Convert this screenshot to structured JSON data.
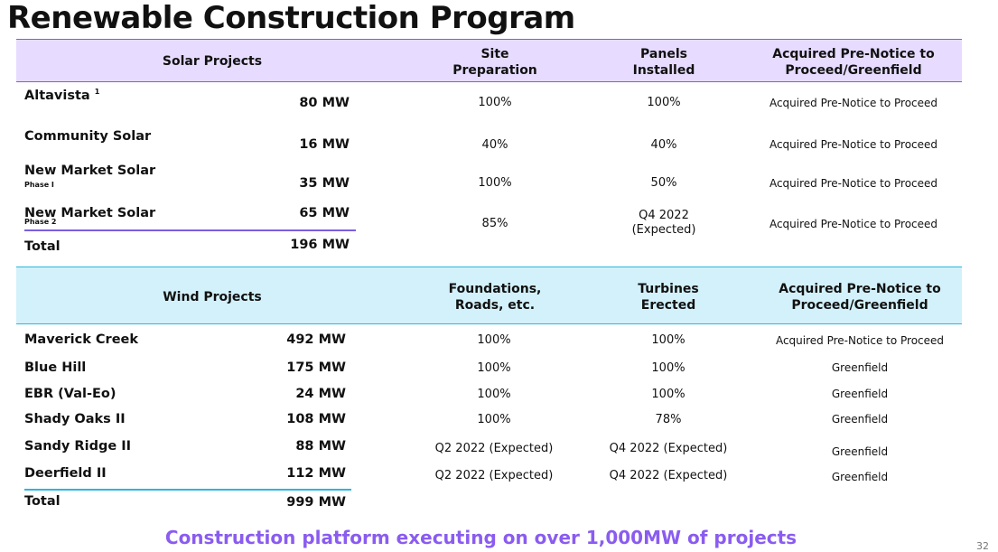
{
  "title": "Renewable Construction Program",
  "colors": {
    "solar_header_bg": "#e7dcff",
    "solar_accent": "#7b5fe0",
    "wind_header_bg": "#d3f1fb",
    "wind_accent": "#29b6e0",
    "footer_text": "#8a5cf0"
  },
  "solar": {
    "headers": {
      "projects": "Solar Projects",
      "col1": [
        "Site",
        "Preparation"
      ],
      "col2": [
        "Panels",
        "Installed"
      ],
      "col3": [
        "Acquired Pre-Notice to",
        "Proceed/Greenfield"
      ]
    },
    "rows": [
      {
        "name": "Altavista",
        "footnote": "1",
        "subtitle": "",
        "capacity": "80 MW",
        "col1": "100%",
        "col2": [
          "100%"
        ],
        "col3": "Acquired Pre-Notice to Proceed"
      },
      {
        "name": "Community Solar",
        "footnote": "",
        "subtitle": "",
        "capacity": "16 MW",
        "col1": "40%",
        "col2": [
          "40%"
        ],
        "col3": "Acquired Pre-Notice to Proceed"
      },
      {
        "name": "New Market Solar",
        "footnote": "",
        "subtitle": "Phase I",
        "capacity": "35 MW",
        "col1": "100%",
        "col2": [
          "50%"
        ],
        "col3": "Acquired Pre-Notice to Proceed"
      },
      {
        "name": "New Market Solar",
        "footnote": "",
        "subtitle": "Phase 2",
        "capacity": "65 MW",
        "col1": "85%",
        "col2": [
          "Q4 2022",
          "(Expected)"
        ],
        "col3": "Acquired Pre-Notice to Proceed"
      }
    ],
    "total": {
      "label": "Total",
      "capacity": "196 MW"
    }
  },
  "wind": {
    "headers": {
      "projects": "Wind Projects",
      "col1": [
        "Foundations,",
        "Roads, etc."
      ],
      "col2": [
        "Turbines",
        "Erected"
      ],
      "col3": [
        "Acquired Pre-Notice to",
        "Proceed/Greenfield"
      ]
    },
    "rows": [
      {
        "name": "Maverick Creek",
        "capacity": "492 MW",
        "col1": "100%",
        "col2": "100%",
        "col3": "Acquired Pre-Notice to Proceed"
      },
      {
        "name": "Blue Hill",
        "capacity": "175 MW",
        "col1": "100%",
        "col2": "100%",
        "col3": "Greenfield"
      },
      {
        "name": "EBR (Val-Eo)",
        "capacity": "24 MW",
        "col1": "100%",
        "col2": "100%",
        "col3": "Greenfield"
      },
      {
        "name": "Shady Oaks II",
        "capacity": "108 MW",
        "col1": "100%",
        "col2": "78%",
        "col3": "Greenfield"
      },
      {
        "name": "Sandy Ridge II",
        "capacity": "88 MW",
        "col1": "Q2 2022 (Expected)",
        "col2": "Q4 2022 (Expected)",
        "col3": "Greenfield"
      },
      {
        "name": "Deerfield II",
        "capacity": "112 MW",
        "col1": "Q2 2022 (Expected)",
        "col2": "Q4 2022 (Expected)",
        "col3": "Greenfield"
      }
    ],
    "total": {
      "label": "Total",
      "capacity": "999 MW"
    }
  },
  "footer": "Construction platform executing on over 1,000MW of projects",
  "page_number": "32"
}
